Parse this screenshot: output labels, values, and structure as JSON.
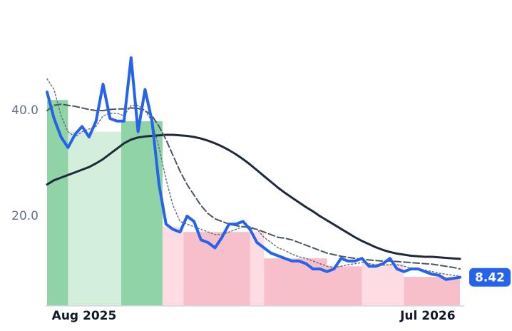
{
  "chart_data": {
    "type": "line",
    "xlim": [
      0,
      59
    ],
    "xticks": [
      {
        "value": 5.3,
        "label": "Aug 2025"
      },
      {
        "value": 54.4,
        "label": "Jul 2026"
      }
    ],
    "ylim": [
      3,
      55
    ],
    "yticks": [
      {
        "value": 20,
        "label": "20.0"
      },
      {
        "value": 40,
        "label": "40.0"
      }
    ],
    "bands": [
      {
        "start": 0,
        "end": 3,
        "value": 42,
        "color": "#8fd3a6"
      },
      {
        "start": 3,
        "end": 10.6,
        "value": 36,
        "color": "#d4eedc"
      },
      {
        "start": 10.6,
        "end": 16.5,
        "value": 38,
        "color": "#8fd3a6"
      },
      {
        "start": 16.5,
        "end": 19.5,
        "value": 18,
        "color": "#fddde3"
      },
      {
        "start": 19.5,
        "end": 29,
        "value": 17,
        "color": "#f7bfca"
      },
      {
        "start": 29,
        "end": 31,
        "value": 17,
        "color": "#fddde3"
      },
      {
        "start": 31,
        "end": 40,
        "value": 12,
        "color": "#f7bfca"
      },
      {
        "start": 40,
        "end": 45,
        "value": 10.5,
        "color": "#f7bfca"
      },
      {
        "start": 45,
        "end": 51,
        "value": 11,
        "color": "#fddde3"
      },
      {
        "start": 51,
        "end": 59,
        "value": 8.5,
        "color": "#f7bfca"
      }
    ],
    "series": [
      {
        "color": "#1e293b",
        "style": "solid",
        "width": 3,
        "values": [
          26,
          26.8,
          27.3,
          27.8,
          28.3,
          28.8,
          29.3,
          30,
          30.8,
          31.8,
          32.8,
          33.8,
          34.5,
          34.9,
          35.1,
          35.2,
          35.3,
          35.4,
          35.4,
          35.3,
          35.2,
          35,
          34.7,
          34.3,
          33.8,
          33.2,
          32.5,
          31.7,
          30.8,
          29.8,
          28.7,
          27.6,
          26.5,
          25.4,
          24.4,
          23.5,
          22.6,
          21.7,
          20.9,
          20,
          19.2,
          18.4,
          17.6,
          16.8,
          16,
          15.3,
          14.7,
          14.1,
          13.6,
          13.2,
          12.9,
          12.7,
          12.5,
          12.4,
          12.3,
          12.3,
          12.2,
          12.1,
          12,
          11.9
        ]
      },
      {
        "color": "#4b5563",
        "style": "dashed",
        "width": 2,
        "values": [
          40,
          41,
          41.2,
          41,
          40.8,
          40.5,
          40.2,
          40,
          40,
          40.2,
          40.3,
          40.3,
          40.5,
          40.4,
          40,
          39,
          37,
          34.5,
          31.5,
          28.5,
          26,
          24,
          22,
          20.5,
          19.5,
          19,
          18.5,
          18.2,
          18,
          17.8,
          17.5,
          17,
          16.5,
          16,
          15.8,
          15.5,
          15,
          14.5,
          14,
          13.5,
          13,
          12.7,
          12.4,
          12.2,
          12,
          11.8,
          11.7,
          11.6,
          11.5,
          11.5,
          11.4,
          11.3,
          11.2,
          11.1,
          11,
          10.9,
          10.7,
          10.5,
          10.3,
          10
        ]
      },
      {
        "color": "#6b7280",
        "style": "dotted",
        "width": 1.5,
        "values": [
          46,
          44,
          39,
          36,
          35,
          36,
          36.5,
          37,
          39,
          39.5,
          39.5,
          39,
          41,
          41,
          40,
          38,
          33,
          27,
          22,
          19,
          18.5,
          18,
          17.5,
          17,
          16.5,
          16.5,
          17,
          17.5,
          18,
          18,
          17.5,
          16,
          15,
          14,
          13.5,
          12.8,
          12.3,
          12,
          11.5,
          11,
          10.5,
          10.3,
          10.5,
          10.8,
          11,
          11.2,
          11,
          10.8,
          10.7,
          10.8,
          10.8,
          10.5,
          10.2,
          10,
          9.8,
          9.5,
          9.2,
          9,
          8.8,
          8.6
        ]
      },
      {
        "color": "#2563eb",
        "style": "solid",
        "width": 4,
        "values": [
          43.5,
          38.5,
          35,
          33,
          35.5,
          37,
          35,
          38,
          45,
          38.5,
          38,
          38,
          50,
          36,
          44,
          38,
          26,
          18.5,
          17.5,
          17,
          20,
          19,
          15.5,
          15,
          14,
          16,
          18.5,
          18.5,
          19,
          17.5,
          15,
          14,
          13,
          12.5,
          12,
          11.5,
          11.5,
          11,
          10,
          10,
          9.5,
          10,
          12,
          11.5,
          11.5,
          12,
          10.5,
          10.5,
          11,
          12,
          10,
          9.5,
          10,
          10,
          9.5,
          9,
          8.8,
          8,
          8.2,
          8.42
        ],
        "last_label": "8.42"
      }
    ]
  }
}
